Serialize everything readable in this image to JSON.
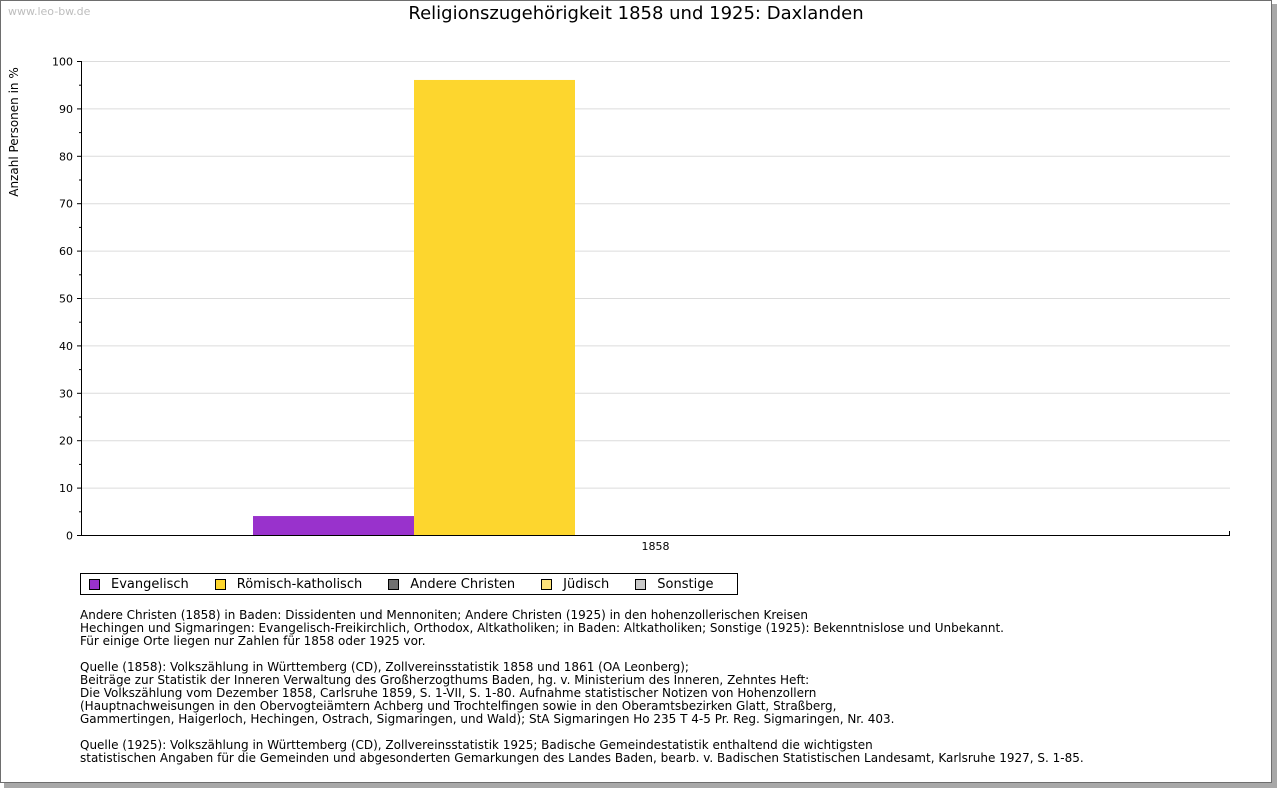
{
  "watermark": "www.leo-bw.de",
  "colors": {
    "evangelisch": "#9932cc",
    "katholisch": "#fdd62e",
    "andere_christen": "#707070",
    "juedisch": "#fde37a",
    "sonstige": "#c8c8c8",
    "grid": "#dcdcdc"
  },
  "chart_data": {
    "type": "bar",
    "title": "Religionszugehörigkeit 1858 und 1925: Daxlanden",
    "xlabel": "",
    "ylabel": "Anzahl Personen in %",
    "ylim": [
      0,
      100
    ],
    "yticks": [
      0,
      10,
      20,
      30,
      40,
      50,
      60,
      70,
      80,
      90,
      100
    ],
    "categories": [
      "1858"
    ],
    "series": [
      {
        "name": "Evangelisch",
        "values": [
          4
        ],
        "color": "#9932cc"
      },
      {
        "name": "Römisch-katholisch",
        "values": [
          96
        ],
        "color": "#fdd62e"
      },
      {
        "name": "Andere Christen",
        "values": [
          0
        ],
        "color": "#707070"
      },
      {
        "name": "Jüdisch",
        "values": [
          0
        ],
        "color": "#fde37a"
      },
      {
        "name": "Sonstige",
        "values": [
          0
        ],
        "color": "#c8c8c8"
      }
    ],
    "grid": true,
    "legend": "bottom"
  },
  "notes": [
    "Andere Christen (1858) in Baden: Dissidenten und Mennoniten; Andere Christen (1925) in den hohenzollerischen Kreisen\nHechingen und Sigmaringen: Evangelisch-Freikirchlich, Orthodox, Altkatholiken; in Baden: Altkatholiken; Sonstige (1925): Bekenntnislose und Unbekannt.\nFür einige Orte liegen nur Zahlen für 1858 oder 1925 vor.",
    "Quelle (1858): Volkszählung in Württemberg (CD), Zollvereinsstatistik 1858 und 1861 (OA Leonberg);\nBeiträge zur Statistik der Inneren Verwaltung des Großherzogthums Baden, hg. v. Ministerium des Inneren, Zehntes Heft:\nDie Volkszählung vom Dezember 1858, Carlsruhe 1859, S. 1-VII, S. 1-80. Aufnahme statistischer Notizen von Hohenzollern\n(Hauptnachweisungen in den Obervogteiämtern Achberg und Trochtelfingen sowie in den Oberamtsbezirken Glatt, Straßberg,\nGammertingen, Haigerloch, Hechingen, Ostrach, Sigmaringen, und Wald); StA Sigmaringen Ho 235 T 4-5 Pr. Reg. Sigmaringen, Nr. 403.",
    "Quelle (1925): Volkszählung in Württemberg (CD), Zollvereinsstatistik 1925; Badische Gemeindestatistik enthaltend die wichtigsten\nstatistischen Angaben für die Gemeinden und abgesonderten Gemarkungen des Landes Baden, bearb. v. Badischen Statistischen Landesamt, Karlsruhe 1927, S. 1-85."
  ]
}
